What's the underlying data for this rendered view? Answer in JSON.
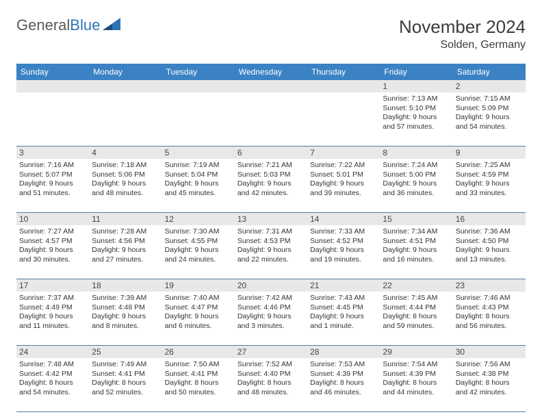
{
  "logo": {
    "text1": "General",
    "text2": "Blue"
  },
  "title": "November 2024",
  "location": "Solden, Germany",
  "colors": {
    "header_bg": "#3a82c4",
    "header_text": "#ffffff",
    "daynum_bg": "#e8e8e8",
    "border": "#5b7a9a",
    "body_text": "#333333",
    "title_text": "#3b3b3b",
    "logo_gray": "#5a5a5a",
    "logo_blue": "#2e75b6"
  },
  "weekdays": [
    "Sunday",
    "Monday",
    "Tuesday",
    "Wednesday",
    "Thursday",
    "Friday",
    "Saturday"
  ],
  "weeks": [
    [
      {
        "n": "",
        "sunrise": "",
        "sunset": "",
        "daylight": ""
      },
      {
        "n": "",
        "sunrise": "",
        "sunset": "",
        "daylight": ""
      },
      {
        "n": "",
        "sunrise": "",
        "sunset": "",
        "daylight": ""
      },
      {
        "n": "",
        "sunrise": "",
        "sunset": "",
        "daylight": ""
      },
      {
        "n": "",
        "sunrise": "",
        "sunset": "",
        "daylight": ""
      },
      {
        "n": "1",
        "sunrise": "Sunrise: 7:13 AM",
        "sunset": "Sunset: 5:10 PM",
        "daylight": "Daylight: 9 hours and 57 minutes."
      },
      {
        "n": "2",
        "sunrise": "Sunrise: 7:15 AM",
        "sunset": "Sunset: 5:09 PM",
        "daylight": "Daylight: 9 hours and 54 minutes."
      }
    ],
    [
      {
        "n": "3",
        "sunrise": "Sunrise: 7:16 AM",
        "sunset": "Sunset: 5:07 PM",
        "daylight": "Daylight: 9 hours and 51 minutes."
      },
      {
        "n": "4",
        "sunrise": "Sunrise: 7:18 AM",
        "sunset": "Sunset: 5:06 PM",
        "daylight": "Daylight: 9 hours and 48 minutes."
      },
      {
        "n": "5",
        "sunrise": "Sunrise: 7:19 AM",
        "sunset": "Sunset: 5:04 PM",
        "daylight": "Daylight: 9 hours and 45 minutes."
      },
      {
        "n": "6",
        "sunrise": "Sunrise: 7:21 AM",
        "sunset": "Sunset: 5:03 PM",
        "daylight": "Daylight: 9 hours and 42 minutes."
      },
      {
        "n": "7",
        "sunrise": "Sunrise: 7:22 AM",
        "sunset": "Sunset: 5:01 PM",
        "daylight": "Daylight: 9 hours and 39 minutes."
      },
      {
        "n": "8",
        "sunrise": "Sunrise: 7:24 AM",
        "sunset": "Sunset: 5:00 PM",
        "daylight": "Daylight: 9 hours and 36 minutes."
      },
      {
        "n": "9",
        "sunrise": "Sunrise: 7:25 AM",
        "sunset": "Sunset: 4:59 PM",
        "daylight": "Daylight: 9 hours and 33 minutes."
      }
    ],
    [
      {
        "n": "10",
        "sunrise": "Sunrise: 7:27 AM",
        "sunset": "Sunset: 4:57 PM",
        "daylight": "Daylight: 9 hours and 30 minutes."
      },
      {
        "n": "11",
        "sunrise": "Sunrise: 7:28 AM",
        "sunset": "Sunset: 4:56 PM",
        "daylight": "Daylight: 9 hours and 27 minutes."
      },
      {
        "n": "12",
        "sunrise": "Sunrise: 7:30 AM",
        "sunset": "Sunset: 4:55 PM",
        "daylight": "Daylight: 9 hours and 24 minutes."
      },
      {
        "n": "13",
        "sunrise": "Sunrise: 7:31 AM",
        "sunset": "Sunset: 4:53 PM",
        "daylight": "Daylight: 9 hours and 22 minutes."
      },
      {
        "n": "14",
        "sunrise": "Sunrise: 7:33 AM",
        "sunset": "Sunset: 4:52 PM",
        "daylight": "Daylight: 9 hours and 19 minutes."
      },
      {
        "n": "15",
        "sunrise": "Sunrise: 7:34 AM",
        "sunset": "Sunset: 4:51 PM",
        "daylight": "Daylight: 9 hours and 16 minutes."
      },
      {
        "n": "16",
        "sunrise": "Sunrise: 7:36 AM",
        "sunset": "Sunset: 4:50 PM",
        "daylight": "Daylight: 9 hours and 13 minutes."
      }
    ],
    [
      {
        "n": "17",
        "sunrise": "Sunrise: 7:37 AM",
        "sunset": "Sunset: 4:49 PM",
        "daylight": "Daylight: 9 hours and 11 minutes."
      },
      {
        "n": "18",
        "sunrise": "Sunrise: 7:39 AM",
        "sunset": "Sunset: 4:48 PM",
        "daylight": "Daylight: 9 hours and 8 minutes."
      },
      {
        "n": "19",
        "sunrise": "Sunrise: 7:40 AM",
        "sunset": "Sunset: 4:47 PM",
        "daylight": "Daylight: 9 hours and 6 minutes."
      },
      {
        "n": "20",
        "sunrise": "Sunrise: 7:42 AM",
        "sunset": "Sunset: 4:46 PM",
        "daylight": "Daylight: 9 hours and 3 minutes."
      },
      {
        "n": "21",
        "sunrise": "Sunrise: 7:43 AM",
        "sunset": "Sunset: 4:45 PM",
        "daylight": "Daylight: 9 hours and 1 minute."
      },
      {
        "n": "22",
        "sunrise": "Sunrise: 7:45 AM",
        "sunset": "Sunset: 4:44 PM",
        "daylight": "Daylight: 8 hours and 59 minutes."
      },
      {
        "n": "23",
        "sunrise": "Sunrise: 7:46 AM",
        "sunset": "Sunset: 4:43 PM",
        "daylight": "Daylight: 8 hours and 56 minutes."
      }
    ],
    [
      {
        "n": "24",
        "sunrise": "Sunrise: 7:48 AM",
        "sunset": "Sunset: 4:42 PM",
        "daylight": "Daylight: 8 hours and 54 minutes."
      },
      {
        "n": "25",
        "sunrise": "Sunrise: 7:49 AM",
        "sunset": "Sunset: 4:41 PM",
        "daylight": "Daylight: 8 hours and 52 minutes."
      },
      {
        "n": "26",
        "sunrise": "Sunrise: 7:50 AM",
        "sunset": "Sunset: 4:41 PM",
        "daylight": "Daylight: 8 hours and 50 minutes."
      },
      {
        "n": "27",
        "sunrise": "Sunrise: 7:52 AM",
        "sunset": "Sunset: 4:40 PM",
        "daylight": "Daylight: 8 hours and 48 minutes."
      },
      {
        "n": "28",
        "sunrise": "Sunrise: 7:53 AM",
        "sunset": "Sunset: 4:39 PM",
        "daylight": "Daylight: 8 hours and 46 minutes."
      },
      {
        "n": "29",
        "sunrise": "Sunrise: 7:54 AM",
        "sunset": "Sunset: 4:39 PM",
        "daylight": "Daylight: 8 hours and 44 minutes."
      },
      {
        "n": "30",
        "sunrise": "Sunrise: 7:56 AM",
        "sunset": "Sunset: 4:38 PM",
        "daylight": "Daylight: 8 hours and 42 minutes."
      }
    ]
  ]
}
